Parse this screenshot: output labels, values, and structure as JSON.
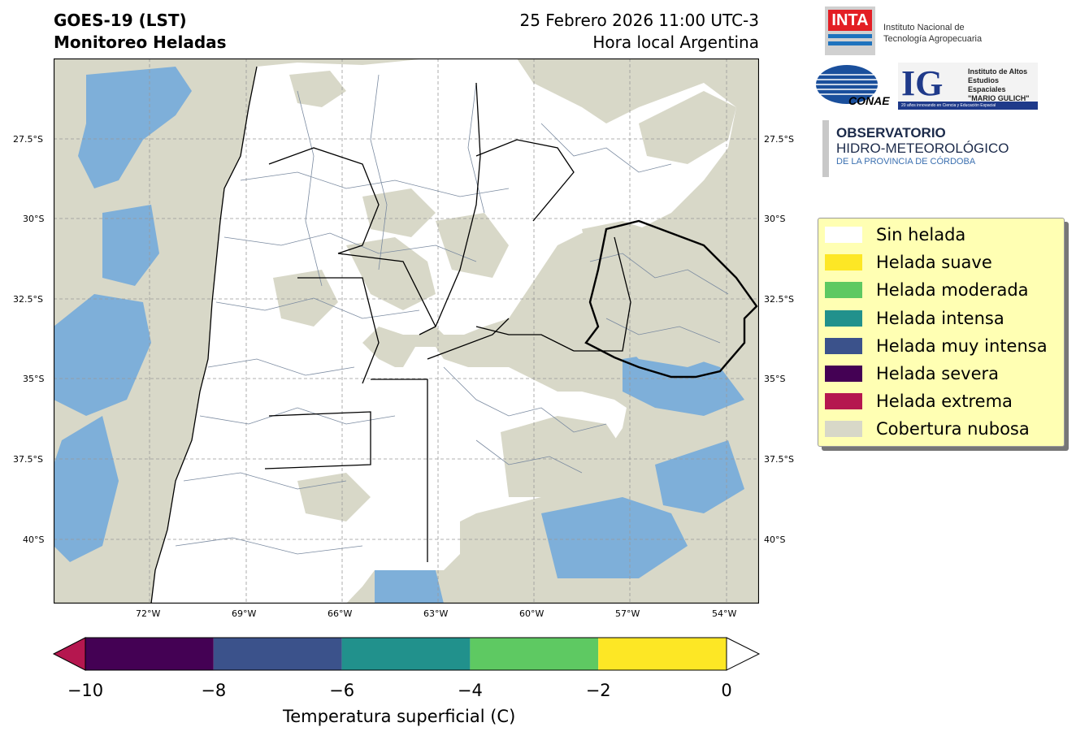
{
  "header": {
    "title_line1": "GOES-19 (LST)",
    "title_line2": "Monitoreo Heladas",
    "date_line": "25 Febrero 2026 11:00 UTC-3",
    "local_time_line": "Hora local Argentina"
  },
  "map": {
    "lat_labels": [
      "27.5°S",
      "30°S",
      "32.5°S",
      "35°S",
      "37.5°S",
      "40°S"
    ],
    "lon_labels": [
      "72°W",
      "69°W",
      "66°W",
      "63°W",
      "60°W",
      "57°W",
      "54°W"
    ],
    "colors": {
      "land": "#ffffff",
      "cloud": "#d8d8c8",
      "water_cloud": "#6fa8dc",
      "boundary": "#000000",
      "departments": "#7a8aa0"
    }
  },
  "logos": {
    "inta_mark": "INTA",
    "inta_name_line1": "Instituto Nacional de",
    "inta_name_line2": "Tecnología Agropecuaria",
    "conae_mark": "CONAE",
    "ig_mark": "IG",
    "ig_line1": "Instituto de Altos",
    "ig_line2": "Estudios Espaciales",
    "ig_line3": "\"MARIO GULICH\"",
    "ig_tagline": "20 años innovando en Ciencia y Educación Espacial",
    "obs_line1": "OBSERVATORIO",
    "obs_line2": "HIDRO-METEOROLÓGICO",
    "obs_line3": "DE LA PROVINCIA DE CÓRDOBA"
  },
  "legend": {
    "items": [
      {
        "label": "Sin helada",
        "color": "#ffffff"
      },
      {
        "label": "Helada suave",
        "color": "#fde725"
      },
      {
        "label": "Helada moderada",
        "color": "#5ec962"
      },
      {
        "label": "Helada intensa",
        "color": "#21918c"
      },
      {
        "label": "Helada muy intensa",
        "color": "#3b528b"
      },
      {
        "label": "Helada severa",
        "color": "#440154"
      },
      {
        "label": "Helada extrema",
        "color": "#b5174f"
      },
      {
        "label": "Cobertura nubosa",
        "color": "#d8d8c8"
      }
    ]
  },
  "colorbar": {
    "ticks": [
      "−10",
      "−8",
      "−6",
      "−4",
      "−2",
      "0"
    ],
    "label": "Temperatura superficial (C)",
    "segments": [
      "#440154",
      "#3b528b",
      "#21918c",
      "#5ec962",
      "#fde725"
    ],
    "under_color": "#b5174f",
    "over_color": "#ffffff"
  }
}
